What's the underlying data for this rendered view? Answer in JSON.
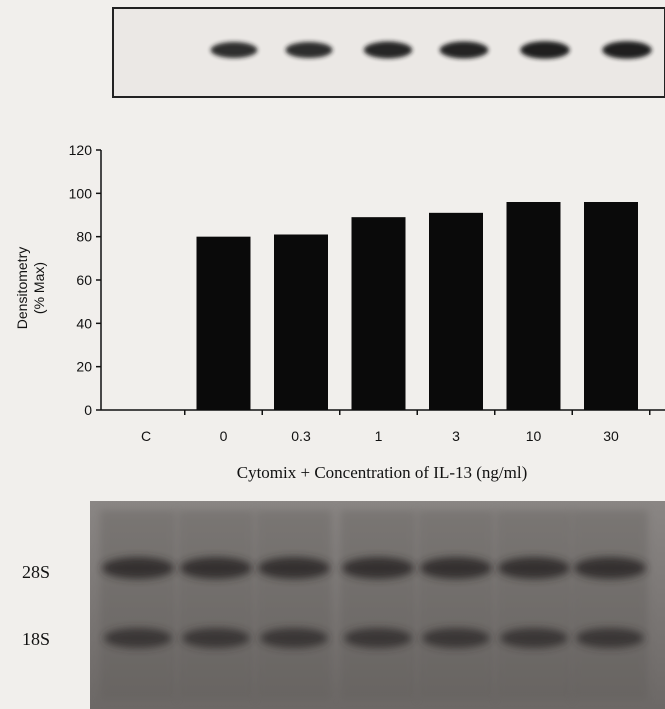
{
  "chart_data": {
    "type": "bar",
    "categories": [
      "C",
      "0",
      "0.3",
      "1",
      "3",
      "10",
      "30"
    ],
    "values": [
      0,
      80,
      81,
      89,
      91,
      96,
      96
    ],
    "ylabel_line1": "Densitometry",
    "ylabel_line2": "(% Max)",
    "xlabel": "Cytomix + Concentration of IL-13 (ng/ml)",
    "ylim": [
      0,
      120
    ],
    "yticks": [
      0,
      20,
      40,
      60,
      80,
      100,
      120
    ],
    "bar_color": "#0a0a0a",
    "grid": false,
    "legend": "none"
  },
  "gels": {
    "northern_blot": {
      "band_intensity": [
        0,
        0.8,
        0.81,
        0.89,
        0.91,
        0.96,
        0.96
      ]
    },
    "rrna_gel": {
      "band_28s_label": "28S",
      "band_18s_label": "18S"
    }
  }
}
